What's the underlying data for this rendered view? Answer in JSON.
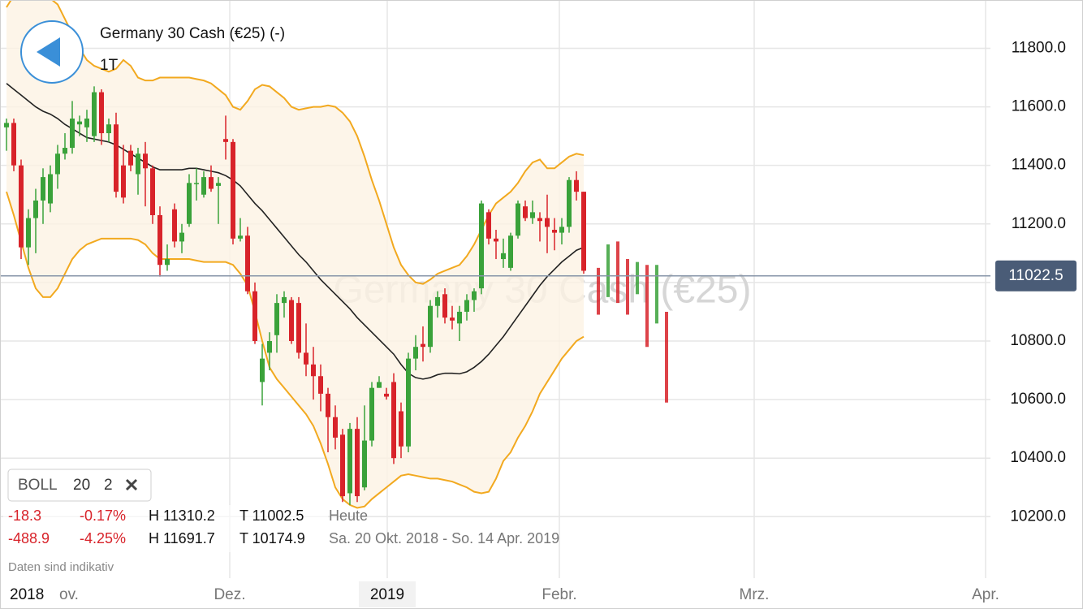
{
  "chart_data": {
    "type": "candlestick",
    "title": "Germany 30 Cash (€25) (-)",
    "watermark": "Germany 30 Cash (€25)",
    "period": "1T",
    "indicator": {
      "name": "BOLL",
      "period": 20,
      "deviation": 2
    },
    "info_rows": [
      [
        "-18.3",
        "-0.17%",
        "H 11310.2",
        "T 11002.5",
        "Heute"
      ],
      [
        "-488.9",
        "-4.25%",
        "H 11691.7",
        "T 10174.9",
        "Sa. 20 Okt. 2018 - So. 14 Apr. 2019"
      ]
    ],
    "note": "Daten sind indikativ",
    "x_labels": [
      "2018",
      "ov.",
      "Dez.",
      "2019",
      "Febr.",
      "Mrz.",
      "Apr."
    ],
    "ylim": [
      9990,
      11965
    ],
    "yticks": [
      {
        "value": 10200,
        "label": "10200.0"
      },
      {
        "value": 10400,
        "label": "10400.0"
      },
      {
        "value": 10600,
        "label": "10600.0"
      },
      {
        "value": 10800,
        "label": "10800.0"
      },
      {
        "value": 11000,
        "label": "11000.0"
      },
      {
        "value": 11200,
        "label": "11200.0"
      },
      {
        "value": 11400,
        "label": "11400.0"
      },
      {
        "value": 11600,
        "label": "11600.0"
      },
      {
        "value": 11800,
        "label": "11800.0"
      }
    ],
    "grid": true,
    "current_price": 11022.5,
    "up_color": "#3aa23a",
    "down_color": "#d8232a",
    "open": [
      11530,
      11545,
      11400,
      11120,
      11220,
      11280,
      11270,
      11370,
      11440,
      11460,
      11540,
      11530,
      11500,
      11650,
      11510,
      11540,
      11400,
      11450,
      11370,
      11440,
      11390,
      11230,
      11060,
      11250,
      11140,
      11200,
      11340,
      11300,
      11360,
      11330,
      11490,
      11480,
      11150,
      11160,
      10970,
      10660,
      10760,
      10820,
      10930,
      10940,
      10930,
      10760,
      10720,
      10680,
      10620,
      10540,
      10480,
      10280,
      10500,
      10300,
      10460,
      10640,
      10620,
      10660,
      10560,
      10440,
      10740,
      10790,
      10780,
      10920,
      10960,
      10880,
      10860,
      10900,
      10940,
      10980,
      11240,
      11150,
      11080,
      11050,
      11160,
      11260,
      11220,
      11220,
      11220,
      11180,
      11170,
      11190,
      11350,
      11310
    ],
    "high": [
      11560,
      11560,
      11420,
      11250,
      11320,
      11390,
      11400,
      11470,
      11510,
      11620,
      11570,
      11590,
      11670,
      11660,
      11560,
      11580,
      11470,
      11470,
      11460,
      11480,
      11400,
      11260,
      11130,
      11270,
      11200,
      11370,
      11390,
      11380,
      11400,
      11360,
      11570,
      11490,
      11220,
      11190,
      11000,
      10790,
      10830,
      10960,
      10970,
      10950,
      10950,
      10860,
      10780,
      10720,
      10640,
      10580,
      10500,
      10520,
      10540,
      10580,
      10660,
      10680,
      10640,
      10690,
      10590,
      10760,
      10820,
      10850,
      10940,
      10970,
      10980,
      10920,
      10920,
      10960,
      10980,
      11280,
      11250,
      11180,
      11150,
      11170,
      11280,
      11280,
      11280,
      11240,
      11300,
      11220,
      11220,
      11360,
      11380,
      11310
    ],
    "low": [
      11450,
      11380,
      11080,
      11060,
      11100,
      11200,
      11240,
      11320,
      11420,
      11440,
      11500,
      11480,
      11480,
      11470,
      11480,
      11290,
      11270,
      11380,
      11300,
      11260,
      11200,
      11020,
      11040,
      11120,
      11100,
      11190,
      11280,
      11290,
      11310,
      11200,
      11420,
      11130,
      11140,
      10960,
      10790,
      10580,
      10700,
      10760,
      10880,
      10790,
      10740,
      10680,
      10600,
      10560,
      10420,
      10430,
      10250,
      10240,
      10250,
      10290,
      10440,
      10640,
      10600,
      10380,
      10400,
      10420,
      10700,
      10730,
      10760,
      10880,
      10860,
      10840,
      10800,
      10870,
      10900,
      10960,
      11130,
      11080,
      11050,
      11040,
      11150,
      11210,
      11200,
      11140,
      11100,
      11110,
      11130,
      11170,
      11280,
      11030
    ],
    "close": [
      11545,
      11400,
      11120,
      11220,
      11280,
      11360,
      11370,
      11440,
      11460,
      11560,
      11550,
      11560,
      11650,
      11510,
      11540,
      11310,
      11290,
      11400,
      11440,
      11390,
      11230,
      11060,
      11080,
      11140,
      11170,
      11340,
      11340,
      11360,
      11320,
      11340,
      11480,
      11150,
      11160,
      10970,
      10800,
      10740,
      10800,
      10930,
      10950,
      10800,
      10760,
      10720,
      10680,
      10620,
      10540,
      10470,
      10270,
      10500,
      10270,
      10460,
      10640,
      10660,
      10610,
      10400,
      10440,
      10740,
      10780,
      10780,
      10920,
      10950,
      10880,
      10870,
      10900,
      10940,
      10970,
      11270,
      11150,
      11140,
      11100,
      11160,
      11270,
      11220,
      11240,
      11210,
      11190,
      11170,
      11190,
      11350,
      11310,
      11040
    ],
    "extension": {
      "open": [
        11050,
        10950,
        11140,
        11080,
        10960,
        11060,
        10860,
        10900
      ],
      "close": [
        10890,
        11130,
        10930,
        10890,
        11070,
        10780,
        11060,
        10590
      ]
    },
    "bands": {
      "color": "#f2a91f",
      "middle_color": "#222222",
      "fill": "#fdf2e4",
      "upper": [
        11940,
        11980,
        12000,
        12010,
        12000,
        11990,
        11970,
        11950,
        11900,
        11850,
        11800,
        11760,
        11740,
        11730,
        11720,
        11730,
        11760,
        11740,
        11700,
        11690,
        11690,
        11700,
        11700,
        11700,
        11700,
        11700,
        11695,
        11690,
        11680,
        11660,
        11640,
        11600,
        11590,
        11620,
        11660,
        11675,
        11670,
        11650,
        11630,
        11600,
        11590,
        11595,
        11600,
        11600,
        11605,
        11600,
        11580,
        11550,
        11500,
        11430,
        11350,
        11280,
        11200,
        11120,
        11060,
        11025,
        11000,
        10995,
        11010,
        11030,
        11040,
        11050,
        11060,
        11090,
        11130,
        11180,
        11230,
        11270,
        11290,
        11310,
        11340,
        11380,
        11410,
        11420,
        11390,
        11390,
        11410,
        11430,
        11440,
        11435
      ],
      "middle": [
        11680,
        11660,
        11640,
        11620,
        11600,
        11585,
        11575,
        11560,
        11540,
        11525,
        11510,
        11495,
        11490,
        11485,
        11480,
        11470,
        11455,
        11440,
        11425,
        11410,
        11395,
        11385,
        11385,
        11385,
        11385,
        11390,
        11390,
        11385,
        11380,
        11375,
        11365,
        11350,
        11330,
        11300,
        11270,
        11245,
        11215,
        11185,
        11155,
        11125,
        11095,
        11070,
        11040,
        11010,
        10985,
        10960,
        10935,
        10910,
        10880,
        10855,
        10830,
        10805,
        10780,
        10755,
        10720,
        10690,
        10675,
        10670,
        10675,
        10685,
        10690,
        10690,
        10688,
        10695,
        10710,
        10730,
        10755,
        10785,
        10815,
        10850,
        10885,
        10920,
        10955,
        10990,
        11020,
        11045,
        11070,
        11090,
        11110,
        11120
      ],
      "lower": [
        11310,
        11230,
        11140,
        11050,
        10980,
        10950,
        10950,
        10980,
        11030,
        11080,
        11110,
        11130,
        11140,
        11150,
        11150,
        11150,
        11150,
        11150,
        11145,
        11130,
        11100,
        11080,
        11080,
        11080,
        11080,
        11080,
        11075,
        11070,
        11070,
        11070,
        11070,
        11060,
        11030,
        10990,
        10900,
        10800,
        10710,
        10670,
        10640,
        10610,
        10580,
        10550,
        10510,
        10450,
        10380,
        10300,
        10260,
        10240,
        10230,
        10235,
        10260,
        10280,
        10300,
        10320,
        10340,
        10345,
        10340,
        10335,
        10330,
        10330,
        10325,
        10320,
        10310,
        10300,
        10285,
        10280,
        10285,
        10330,
        10390,
        10420,
        10470,
        10510,
        10560,
        10620,
        10660,
        10700,
        10740,
        10770,
        10800,
        10815
      ]
    }
  }
}
